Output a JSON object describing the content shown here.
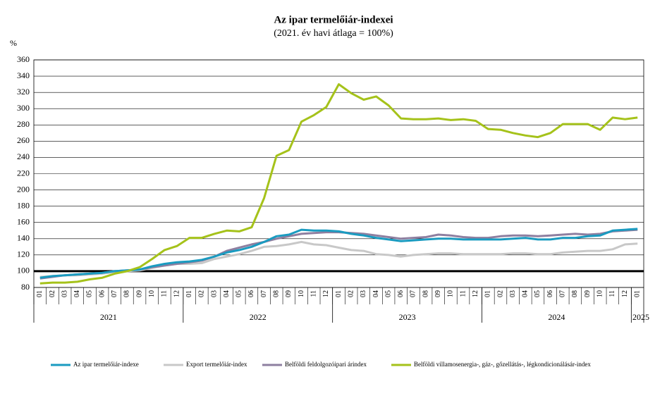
{
  "chart_data": {
    "type": "line",
    "title": "Az ipar termelőiár-indexei",
    "subtitle": "(2021. év havi átlaga = 100%)",
    "y_label": "%",
    "categories": [
      "01",
      "02",
      "03",
      "04",
      "05",
      "06",
      "07",
      "08",
      "09",
      "10",
      "11",
      "12",
      "01",
      "02",
      "03",
      "04",
      "05",
      "06",
      "07",
      "08",
      "09",
      "10",
      "11",
      "12",
      "01",
      "02",
      "03",
      "04",
      "05",
      "06",
      "07",
      "08",
      "09",
      "10",
      "11",
      "12",
      "01",
      "02",
      "03",
      "04",
      "05",
      "06",
      "07",
      "08",
      "09",
      "10",
      "11",
      "12",
      "01"
    ],
    "years": [
      "2021",
      "2022",
      "2023",
      "2024",
      "2025"
    ],
    "series": [
      {
        "name": "Az ipar termelőiár-indexe",
        "color": "#1a9bc0",
        "values": [
          92,
          94,
          95,
          96,
          97,
          98,
          100,
          101,
          102,
          106,
          109,
          111,
          112,
          114,
          118,
          123,
          126,
          130,
          136,
          143,
          145,
          151,
          150,
          150,
          149,
          146,
          144,
          141,
          139,
          137,
          138,
          139,
          140,
          140,
          139,
          139,
          139,
          139,
          140,
          141,
          139,
          139,
          141,
          141,
          143,
          144,
          150,
          151,
          152
        ]
      },
      {
        "name": "Export termelőiár-index",
        "color": "#c8c8c8",
        "values": [
          93,
          94,
          95,
          95,
          96,
          97,
          99,
          100,
          101,
          104,
          107,
          109,
          109,
          110,
          115,
          118,
          121,
          125,
          130,
          131,
          133,
          136,
          133,
          132,
          129,
          126,
          125,
          121,
          120,
          118,
          120,
          121,
          122,
          122,
          121,
          121,
          121,
          121,
          122,
          122,
          121,
          121,
          123,
          124,
          125,
          125,
          127,
          133,
          134
        ]
      },
      {
        "name": "Belföldi feldolgozóipari árindex",
        "color": "#8e7fa0",
        "values": [
          91,
          93,
          95,
          96,
          97,
          98,
          100,
          101,
          102,
          105,
          107,
          109,
          111,
          113,
          118,
          125,
          129,
          133,
          136,
          140,
          143,
          146,
          147,
          148,
          148,
          147,
          146,
          144,
          142,
          140,
          141,
          142,
          145,
          144,
          142,
          141,
          141,
          143,
          144,
          144,
          143,
          144,
          145,
          146,
          145,
          146,
          149,
          150,
          151
        ]
      },
      {
        "name": "Belföldi villamosenergia-, gáz-, gőzellátás-, légkondicionálásár-index",
        "color": "#a5c21a",
        "values": [
          85,
          86,
          86,
          87,
          90,
          92,
          97,
          100,
          105,
          115,
          126,
          131,
          141,
          141,
          146,
          150,
          149,
          154,
          190,
          242,
          249,
          284,
          292,
          302,
          330,
          319,
          311,
          315,
          304,
          288,
          287,
          287,
          288,
          286,
          287,
          285,
          275,
          274,
          270,
          267,
          265,
          270,
          281,
          281,
          281,
          274,
          289,
          287,
          289
        ]
      }
    ],
    "hline": 100,
    "ylim": [
      80,
      360
    ],
    "yticks": [
      80,
      100,
      120,
      140,
      160,
      180,
      200,
      220,
      240,
      260,
      280,
      300,
      320,
      340,
      360
    ],
    "grid": true
  }
}
